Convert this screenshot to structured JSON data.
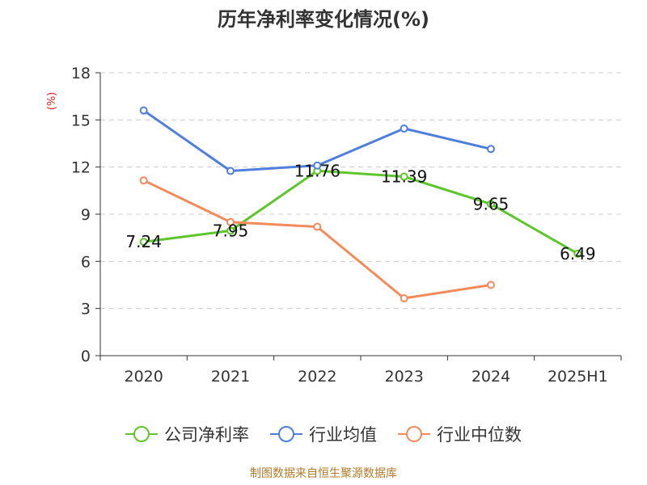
{
  "chart_data": {
    "type": "line",
    "title": "历年净利率变化情况(%)",
    "y_unit": "(%)",
    "categories": [
      "2020",
      "2021",
      "2022",
      "2023",
      "2024",
      "2025H1"
    ],
    "ylim": [
      0,
      18
    ],
    "yticks": [
      0,
      3,
      6,
      9,
      12,
      15,
      18
    ],
    "grid": true,
    "legend_position": "bottom",
    "series": [
      {
        "name": "公司净利率",
        "color": "#5cc62a",
        "values": [
          7.24,
          7.95,
          11.76,
          11.39,
          9.65,
          6.49
        ],
        "labels": [
          "7.24",
          "7.95",
          "11.76",
          "11.39",
          "9.65",
          "6.49"
        ],
        "show_labels": true
      },
      {
        "name": "行业均值",
        "color": "#4e7fdc",
        "values": [
          15.6,
          11.75,
          12.1,
          14.45,
          13.15,
          null
        ],
        "show_labels": false
      },
      {
        "name": "行业中位数",
        "color": "#f48a5a",
        "values": [
          11.15,
          8.5,
          8.2,
          3.65,
          4.5,
          null
        ],
        "show_labels": false
      }
    ]
  },
  "footer": "制图数据来自恒生聚源数据库"
}
